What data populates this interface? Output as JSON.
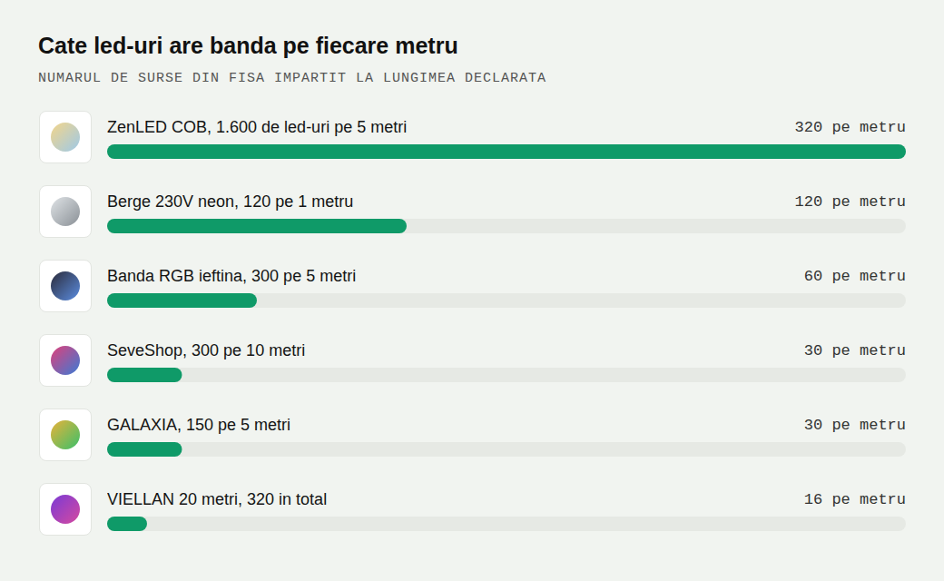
{
  "chart_data": {
    "type": "bar",
    "orientation": "horizontal",
    "title": "Cate led-uri are banda pe fiecare metru",
    "subtitle": "NUMARUL DE SURSE DIN FISA IMPARTIT LA LUNGIMEA DECLARATA",
    "categories": [
      "ZenLED COB, 1.600 de led-uri pe 5 metri",
      "Berge 230V neon, 120 pe 1 metru",
      "Banda RGB ieftina, 300 pe 5 metri",
      "SeveShop, 300 pe 10 metri",
      "GALAXIA, 150 pe 5 metri",
      "VIELLAN 20 metri, 320 in total"
    ],
    "values": [
      320,
      120,
      60,
      30,
      30,
      16
    ],
    "value_labels": [
      "320 pe metru",
      "120 pe metru",
      "60 pe metru",
      "30 pe metru",
      "30 pe metru",
      "16 pe metru"
    ],
    "data_labels": true,
    "color": "#0f9a68",
    "xlim": [
      0,
      320
    ],
    "tick_labels": false,
    "grid": false
  }
}
